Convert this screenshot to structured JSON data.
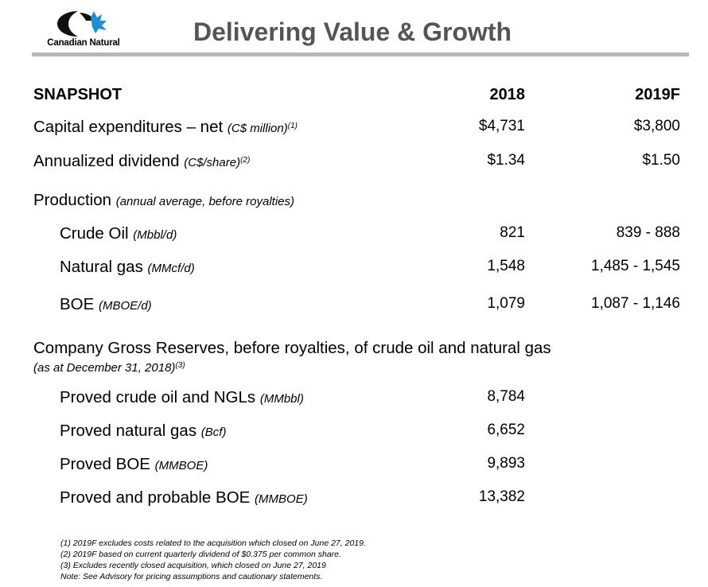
{
  "header": {
    "logo_text": "Canadian Natural",
    "title": "Delivering Value & Growth",
    "brand_color": "#1a1a1a",
    "accent_color": "#1f8fd1"
  },
  "table": {
    "section_label": "SNAPSHOT",
    "col_2018": "2018",
    "col_2019": "2019F",
    "capex": {
      "label": "Capital expenditures – net",
      "unit": "(C$ million)",
      "note": "(1)",
      "v2018": "$4,731",
      "v2019": "$3,800"
    },
    "dividend": {
      "label": "Annualized dividend",
      "unit": "(C$/share)",
      "note": "(2)",
      "v2018": "$1.34",
      "v2019": "$1.50"
    },
    "production": {
      "label": "Production",
      "unit": "(annual average, before royalties)"
    },
    "crude": {
      "label": "Crude Oil",
      "unit": "(Mbbl/d)",
      "v2018": "821",
      "v2019": "839 - 888"
    },
    "gas": {
      "label": "Natural gas",
      "unit": "(MMcf/d)",
      "v2018": "1,548",
      "v2019": "1,485 - 1,545"
    },
    "boe": {
      "label": "BOE",
      "unit": "(MBOE/d)",
      "v2018": "1,079",
      "v2019": "1,087 - 1,146"
    },
    "reserves": {
      "label": "Company Gross Reserves, before royalties, of crude oil and natural gas",
      "sub": "(as at December 31, 2018)",
      "note": "(3)"
    },
    "proved_crude": {
      "label": "Proved crude oil and NGLs",
      "unit": "(MMbbl)",
      "v2018": "8,784"
    },
    "proved_gas": {
      "label": "Proved natural gas",
      "unit": "(Bcf)",
      "v2018": "6,652"
    },
    "proved_boe": {
      "label": "Proved BOE",
      "unit": "(MMBOE)",
      "v2018": "9,893"
    },
    "pp_boe": {
      "label": "Proved and probable BOE",
      "unit": "(MMBOE)",
      "v2018": "13,382"
    }
  },
  "footnotes": [
    "(1) 2019F excludes costs related to the acquisition which closed on June 27, 2019.",
    "(2) 2019F based on current quarterly dividend of $0.375 per common share.",
    "(3) Excludes recently closed acquisition, which closed on June 27, 2019",
    "Note: See Advisory for pricing assumptions and cautionary statements."
  ]
}
